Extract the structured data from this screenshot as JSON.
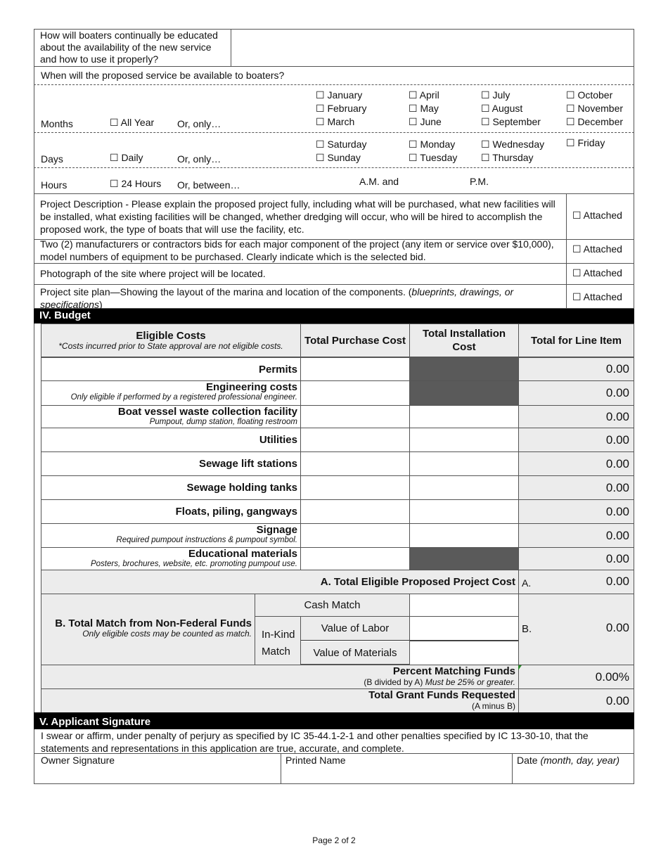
{
  "education_question": "How will boaters continually be educated about the availability of the new service and how to use it properly?",
  "availability": {
    "question": "When will the proposed service be available to boaters?",
    "months_label": "Months",
    "all_year": "☐ All Year",
    "or_only": "Or, only…",
    "months": [
      "☐ January",
      "☐ February",
      "☐ March",
      "☐ April",
      "☐ May",
      "☐ June",
      "☐ July",
      "☐ August",
      "☐ September",
      "☐ October",
      "☐ November",
      "☐ December"
    ],
    "days_label": "Days",
    "daily": "☐ Daily",
    "days_or_only": "Or, only…",
    "days": [
      "☐ Saturday",
      "☐ Sunday",
      "☐ Monday",
      "☐ Tuesday",
      "☐ Wednesday",
      "☐ Thursday",
      "☐ Friday"
    ],
    "hours_label": "Hours",
    "hours_24": "☐ 24 Hours",
    "or_between": "Or, between…",
    "am_and": "A.M. and",
    "pm": "P.M."
  },
  "attachments": [
    {
      "text": "Project Description - Please explain the proposed project fully, including what will be purchased, what new facilities will be installed, what existing facilities will be changed, whether dredging will occur, who will be hired to accomplish the proposed work, the type of boats that will use the facility, etc.",
      "check": "☐ Attached"
    },
    {
      "text": "Two (2) manufacturers or contractors bids for each major component of the project (any item or service over $10,000), model numbers of equipment to be purchased.  Clearly indicate which is the selected bid.",
      "check": "☐ Attached"
    },
    {
      "text": "Photograph of the site where project will be located.",
      "check": "☐ Attached"
    },
    {
      "text": "Project site plan—Showing the layout of the marina and location of the components. (",
      "italic": "blueprints, drawings, or specifications",
      "text_end": ")",
      "check": "☐ Attached"
    }
  ],
  "budget": {
    "title": "IV. Budget",
    "headers": {
      "eligible": "Eligible Costs",
      "eligible_note": "*Costs incurred prior to State approval are not eligible costs.",
      "purchase": "Total Purchase Cost",
      "installation": "Total Installation Cost",
      "total": "Total for Line Item"
    },
    "rows": [
      {
        "label": "Permits",
        "note": "",
        "total": "0.00"
      },
      {
        "label": "Engineering costs",
        "note": "Only eligible if performed by a registered professional engineer.",
        "total": "0.00"
      },
      {
        "label": "Boat vessel waste collection facility",
        "note": "Pumpout, dump station, floating restroom",
        "total": "0.00"
      },
      {
        "label": "Utilities",
        "note": "",
        "total": "0.00"
      },
      {
        "label": "Sewage lift stations",
        "note": "",
        "total": "0.00"
      },
      {
        "label": "Sewage holding tanks",
        "note": "",
        "total": "0.00"
      },
      {
        "label": "Floats, piling, gangways",
        "note": "",
        "total": "0.00"
      },
      {
        "label": "Signage",
        "note": "Required pumpout instructions & pumpout symbol.",
        "total": "0.00"
      },
      {
        "label": "Educational materials",
        "note": "Posters, brochures, website, etc. promoting pumpout use.",
        "total": "0.00"
      }
    ],
    "total_a": {
      "label": "A. Total Eligible Proposed Project Cost",
      "letter": "A.",
      "value": "0.00"
    },
    "match_b": {
      "label": "B. Total Match from Non-Federal Funds",
      "note": "Only eligible costs may be counted as match.",
      "cash": "Cash Match",
      "in_kind": "In-Kind",
      "match": "Match",
      "labor": "Value of Labor",
      "materials": "Value of Materials",
      "letter": "B.",
      "value": "0.00"
    },
    "percent": {
      "label": "Percent Matching Funds",
      "note_plain": "(B divided by A) ",
      "note_italic": "Must be 25% or greater.",
      "value": "0.00%"
    },
    "grant": {
      "label": "Total Grant Funds Requested",
      "note": "(A minus B)",
      "value": "0.00"
    }
  },
  "signature": {
    "title": "V. Applicant Signature",
    "statement": "I swear or affirm, under penalty of perjury as specified by IC 35-44.1-2-1 and other penalties specified by IC 13-30-10, that the statements and representations in this application are true, accurate, and complete.",
    "owner": "Owner Signature",
    "printed": "Printed Name",
    "date": "Date ",
    "date_italic": "(month, day, year)"
  },
  "footer": "Page 2 of 2"
}
